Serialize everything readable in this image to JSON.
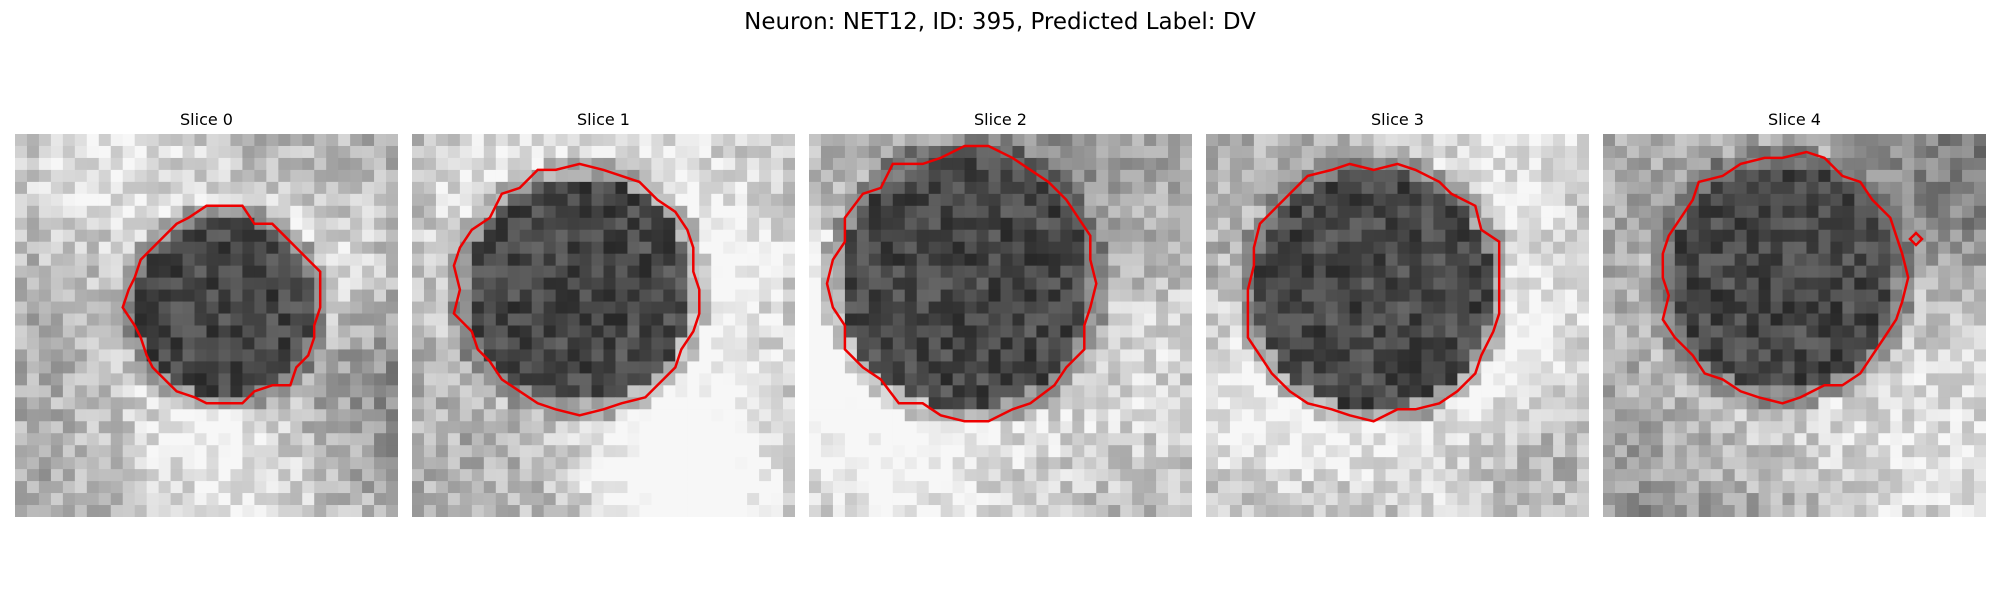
{
  "figure": {
    "title": "Neuron: NET12, ID: 395, Predicted Label: DV"
  },
  "colors": {
    "contour": "#ee0000",
    "background": "#ffffff"
  },
  "panels": [
    {
      "title": "Slice 0",
      "cell_radius": 7.4,
      "cell_cx": 17.5,
      "cell_cy": 14.5
    },
    {
      "title": "Slice 1",
      "cell_radius": 9.5,
      "cell_cx": 14.0,
      "cell_cy": 13.0
    },
    {
      "title": "Slice 2",
      "cell_radius": 10.5,
      "cell_cx": 13.0,
      "cell_cy": 12.5
    },
    {
      "title": "Slice 3",
      "cell_radius": 10.0,
      "cell_cx": 14.0,
      "cell_cy": 13.0
    },
    {
      "title": "Slice 4",
      "cell_radius": 9.5,
      "cell_cx": 15.0,
      "cell_cy": 12.0
    }
  ]
}
